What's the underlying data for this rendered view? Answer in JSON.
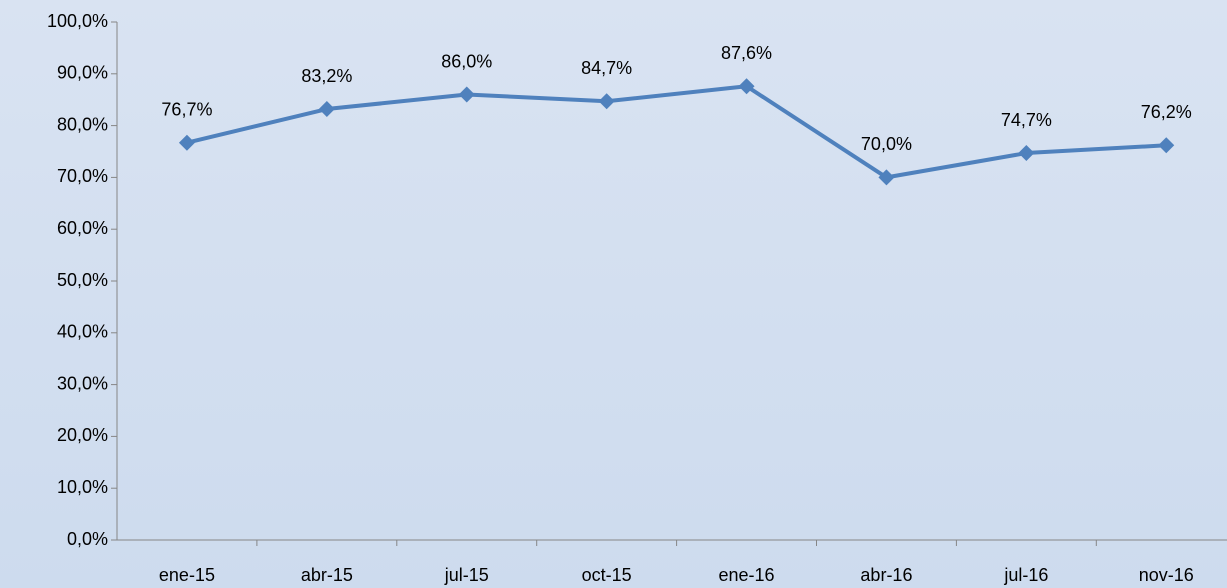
{
  "chart_data": {
    "type": "line",
    "categories": [
      "ene-15",
      "abr-15",
      "jul-15",
      "oct-15",
      "ene-16",
      "abr-16",
      "jul-16",
      "nov-16"
    ],
    "series": [
      {
        "color": "#4f81bd",
        "values": [
          76.7,
          83.2,
          86.0,
          84.7,
          87.6,
          70.0,
          74.7,
          76.2
        ],
        "value_labels": [
          "76,7%",
          "83,2%",
          "86,0%",
          "84,7%",
          "87,6%",
          "70,0%",
          "74,7%",
          "76,2%"
        ]
      }
    ],
    "ylim": [
      0,
      100
    ],
    "yticks": [
      {
        "value": 0,
        "label": "0,0%"
      },
      {
        "value": 10,
        "label": "10,0%"
      },
      {
        "value": 20,
        "label": "20,0%"
      },
      {
        "value": 30,
        "label": "30,0%"
      },
      {
        "value": 40,
        "label": "40,0%"
      },
      {
        "value": 50,
        "label": "50,0%"
      },
      {
        "value": 60,
        "label": "60,0%"
      },
      {
        "value": 70,
        "label": "70,0%"
      },
      {
        "value": 80,
        "label": "80,0%"
      },
      {
        "value": 90,
        "label": "90,0%"
      },
      {
        "value": 100,
        "label": "100,0%"
      }
    ],
    "grid": false
  }
}
